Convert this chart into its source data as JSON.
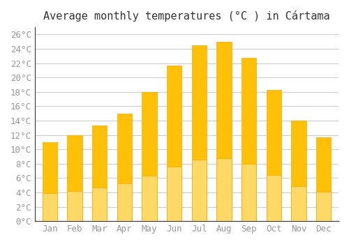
{
  "title": "Average monthly temperatures (°C ) in Cártama",
  "months": [
    "Jan",
    "Feb",
    "Mar",
    "Apr",
    "May",
    "Jun",
    "Jul",
    "Aug",
    "Sep",
    "Oct",
    "Nov",
    "Dec"
  ],
  "values": [
    11.0,
    12.0,
    13.3,
    15.0,
    18.0,
    21.7,
    24.5,
    25.0,
    22.7,
    18.3,
    14.0,
    11.7
  ],
  "bar_color_top": "#FFC107",
  "bar_color_bottom": "#FFD966",
  "bar_edge_color": "#FFA500",
  "background_color": "#ffffff",
  "grid_color": "#cccccc",
  "ylim": [
    0,
    27
  ],
  "yticks": [
    0,
    2,
    4,
    6,
    8,
    10,
    12,
    14,
    16,
    18,
    20,
    22,
    24,
    26
  ],
  "title_fontsize": 11,
  "tick_fontsize": 9,
  "title_color": "#333333",
  "tick_color": "#999999",
  "font_family": "monospace"
}
